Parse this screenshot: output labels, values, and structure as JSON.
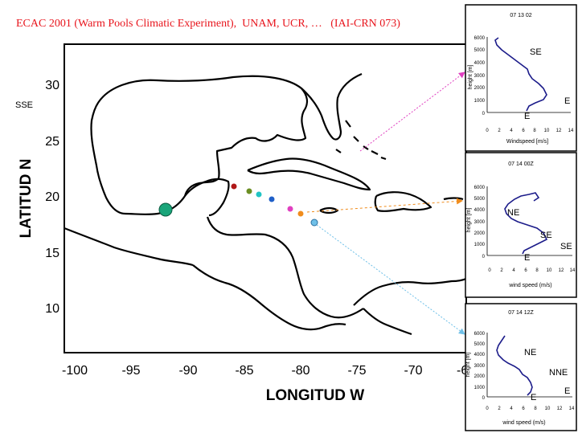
{
  "title": "ECAC 2001 (Warm Pools Climatic Experiment),  UNAM, UCR, …   (IAI-CRN 073)",
  "map": {
    "xlabel": "LONGITUD W",
    "ylabel": "LATITUD N",
    "xticks": [
      "-100",
      "-95",
      "-90",
      "-85",
      "-80",
      "-75",
      "-70",
      "-6"
    ],
    "yticks": [
      "30",
      "25",
      "20",
      "15",
      "10"
    ],
    "left_wind_label": "SSE"
  },
  "stations": [
    {
      "color": "#b01818"
    },
    {
      "color": "#6b8e23"
    },
    {
      "color": "#20c4c4"
    },
    {
      "color": "#1f5fc8"
    },
    {
      "color": "#e040c0"
    },
    {
      "color": "#f08c1c"
    },
    {
      "color": "#6fc0e8"
    }
  ],
  "colors": {
    "big_site": "#1aa57a",
    "profile_line": "#1c1c8a"
  },
  "profiles": [
    {
      "title": "07 13 02",
      "ylabel": "height [m]",
      "xlabel": "Windspeed [m/s]",
      "yticks": [
        "6000",
        "5000",
        "4000",
        "3000",
        "2000",
        "1000",
        "0"
      ],
      "xticks": [
        "0",
        "2",
        "4",
        "6",
        "8",
        "10",
        "12",
        "14"
      ],
      "wind_labels": [
        "SE",
        "E",
        "E"
      ],
      "arrow_color": "#e040c0"
    },
    {
      "title": "07 14 00Z",
      "ylabel": "height [m]",
      "xlabel": "wind speed (m/s)",
      "yticks": [
        "6000",
        "5000",
        "4000",
        "3000",
        "2000",
        "1000",
        "0"
      ],
      "xticks": [
        "0",
        "2",
        "4",
        "6",
        "8",
        "10",
        "12",
        "14"
      ],
      "wind_labels": [
        "NE",
        "SE",
        "SE",
        "E"
      ],
      "arrow_color": "#f08c1c"
    },
    {
      "title": "07 14 12Z",
      "ylabel": "height [m]",
      "xlabel": "wind speed (m/s)",
      "yticks": [
        "6000",
        "5000",
        "4000",
        "3000",
        "2000",
        "1000",
        "0"
      ],
      "xticks": [
        "0",
        "2",
        "4",
        "6",
        "8",
        "10",
        "12",
        "14"
      ],
      "wind_labels": [
        "NE",
        "NNE",
        "E",
        "E"
      ],
      "arrow_color": "#6fc0e8"
    }
  ]
}
